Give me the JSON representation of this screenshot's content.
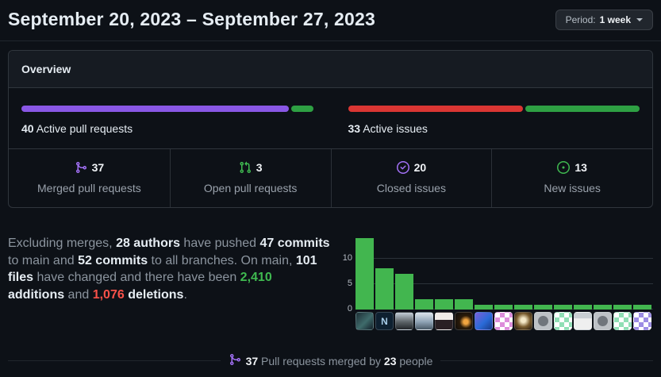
{
  "colors": {
    "background": "#0d1117",
    "panel_border": "#30363d",
    "merged_purple": "#8957e5",
    "open_green": "#2ea043",
    "closed_red": "#da3633",
    "new_green": "#2ea043",
    "icon_purple": "#a371f7",
    "icon_green": "#3fb950",
    "chart_bar_green": "#42b64f",
    "additions_green": "#3fb950",
    "deletions_red": "#f85149"
  },
  "header": {
    "title": "September 20, 2023 – September 27, 2023",
    "period_button": {
      "label_prefix": "Period:",
      "value": "1 week",
      "caret_icon": "chevron-down-icon"
    }
  },
  "overview": {
    "title": "Overview",
    "pull_requests": {
      "count": "40",
      "label": "Active pull requests",
      "segments": [
        {
          "name": "merged",
          "value": 37,
          "color": "#8957e5"
        },
        {
          "name": "open",
          "value": 3,
          "color": "#2ea043"
        }
      ]
    },
    "issues": {
      "count": "33",
      "label": "Active issues",
      "segments": [
        {
          "name": "closed",
          "value": 20,
          "color": "#da3633"
        },
        {
          "name": "new",
          "value": 13,
          "color": "#2ea043"
        }
      ]
    },
    "stats": [
      {
        "icon": "git-merge-icon",
        "icon_color": "#a371f7",
        "value": "37",
        "label": "Merged pull requests"
      },
      {
        "icon": "git-pull-request-icon",
        "icon_color": "#3fb950",
        "value": "3",
        "label": "Open pull requests"
      },
      {
        "icon": "issue-closed-icon",
        "icon_color": "#a371f7",
        "value": "20",
        "label": "Closed issues"
      },
      {
        "icon": "issue-opened-icon",
        "icon_color": "#3fb950",
        "value": "13",
        "label": "New issues"
      }
    ]
  },
  "summary": {
    "segments": [
      {
        "text": "Excluding merges, ",
        "style": "muted"
      },
      {
        "text": "28 authors",
        "style": "bold"
      },
      {
        "text": " have pushed ",
        "style": "muted"
      },
      {
        "text": "47 commits",
        "style": "bold"
      },
      {
        "text": " to main and ",
        "style": "muted"
      },
      {
        "text": "52 commits",
        "style": "bold"
      },
      {
        "text": " to all branches. On main, ",
        "style": "muted"
      },
      {
        "text": "101 files",
        "style": "bold"
      },
      {
        "text": " have changed and there have been ",
        "style": "muted"
      },
      {
        "text": "2,410",
        "style": "additions"
      },
      {
        "text": " ",
        "style": "muted"
      },
      {
        "text": "additions",
        "style": "bold"
      },
      {
        "text": " and ",
        "style": "muted"
      },
      {
        "text": "1,076",
        "style": "deletions"
      },
      {
        "text": " ",
        "style": "muted"
      },
      {
        "text": "deletions",
        "style": "bold"
      },
      {
        "text": ".",
        "style": "muted"
      }
    ]
  },
  "chart_data": {
    "type": "bar",
    "title": "",
    "xlabel": "",
    "ylabel": "",
    "categories": [
      "contributor-1",
      "contributor-2",
      "contributor-3",
      "contributor-4",
      "contributor-5",
      "contributor-6",
      "contributor-7",
      "contributor-8",
      "contributor-9",
      "contributor-10",
      "contributor-11",
      "contributor-12",
      "contributor-13",
      "contributor-14",
      "contributor-15"
    ],
    "values": [
      14,
      8,
      7,
      2,
      2,
      2,
      1,
      1,
      1,
      1,
      1,
      1,
      1,
      1,
      1
    ],
    "yticks": [
      0,
      5,
      10
    ],
    "ylim": [
      0,
      14.6
    ],
    "grid": true,
    "legend": false,
    "bar_color": "#42b64f"
  },
  "avatars": [
    {
      "name": "avatar-1",
      "kind": "photo",
      "bg": "linear-gradient(135deg,#1d2e35,#3f6b6b 55%,#14212a)"
    },
    {
      "name": "avatar-2",
      "kind": "letter",
      "bg": "#0e2030",
      "fg": "#a8cde8",
      "letter": "N"
    },
    {
      "name": "avatar-3",
      "kind": "photo",
      "bg": "linear-gradient(180deg,#c3cdd6,#5d6468 55%,#22262a)"
    },
    {
      "name": "avatar-4",
      "kind": "photo",
      "bg": "linear-gradient(180deg,#dde5ec,#8fa3b5 55%,#4a5a68)"
    },
    {
      "name": "avatar-5",
      "kind": "photo",
      "bg": "linear-gradient(180deg,#f0ebe8 0%,#f0ebe8 42%,#2a2024 44%)"
    },
    {
      "name": "avatar-6",
      "kind": "photo",
      "bg": "radial-gradient(circle at 62% 55%,#f2a540 0%,#f2a540 16%,#2a1a08 45%,#0a0a0c 100%)"
    },
    {
      "name": "avatar-7",
      "kind": "photo",
      "bg": "linear-gradient(135deg,#7a5fd8,#2a6bd8 55%,#1a3a88)"
    },
    {
      "name": "avatar-8",
      "kind": "identicon",
      "bg": "#ffffff",
      "fg": "#dd8ddb"
    },
    {
      "name": "avatar-9",
      "kind": "photo",
      "bg": "radial-gradient(circle at 50% 45%,#f5e9c8 0%,#f5e9c8 18%,#7a5c2e 55%,#241a10 100%)"
    },
    {
      "name": "avatar-10",
      "kind": "octocat",
      "bg": "#bdc1c6",
      "fg": "#70757c"
    },
    {
      "name": "avatar-11",
      "kind": "identicon",
      "bg": "#ffffff",
      "fg": "#90dfb5"
    },
    {
      "name": "avatar-12",
      "kind": "photo",
      "bg": "linear-gradient(180deg,#c9ced2 0%,#c9ced2 32%,#efefef 36%)"
    },
    {
      "name": "avatar-13",
      "kind": "octocat",
      "bg": "#bdc1c6",
      "fg": "#70757c"
    },
    {
      "name": "avatar-14",
      "kind": "identicon",
      "bg": "#ffffff",
      "fg": "#90dfb5"
    },
    {
      "name": "avatar-15",
      "kind": "identicon",
      "bg": "#ffffff",
      "fg": "#9c8ce4"
    }
  ],
  "footer": {
    "icon": "git-merge-icon",
    "icon_color": "#a371f7",
    "merged_count": "37",
    "text_middle": " Pull requests merged by ",
    "people_count": "23",
    "text_end": " people"
  }
}
